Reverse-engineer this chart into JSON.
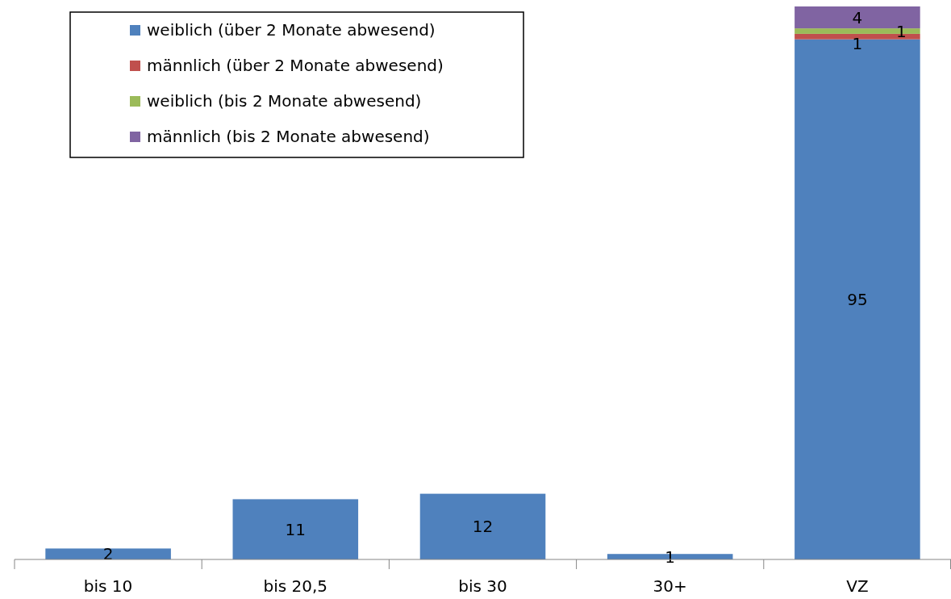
{
  "chart_data": {
    "type": "bar",
    "stacked": true,
    "data_labels": true,
    "legend": "top left",
    "categories": [
      "bis 10",
      "bis 20,5",
      "bis 30",
      "30+",
      "VZ"
    ],
    "series": [
      {
        "name": "weiblich (über 2 Monate abwesend)",
        "color": "#4f81bd",
        "values": [
          2,
          11,
          12,
          1,
          95
        ]
      },
      {
        "name": "männlich (über 2 Monate abwesend)",
        "color": "#c0504d",
        "values": [
          null,
          null,
          null,
          null,
          1
        ]
      },
      {
        "name": "weiblich (bis 2 Monate abwesend)",
        "color": "#9bbb59",
        "values": [
          null,
          null,
          null,
          null,
          1
        ]
      },
      {
        "name": "männlich (bis 2 Monate abwesend)",
        "color": "#8064a2",
        "values": [
          null,
          null,
          null,
          null,
          4
        ]
      }
    ]
  }
}
